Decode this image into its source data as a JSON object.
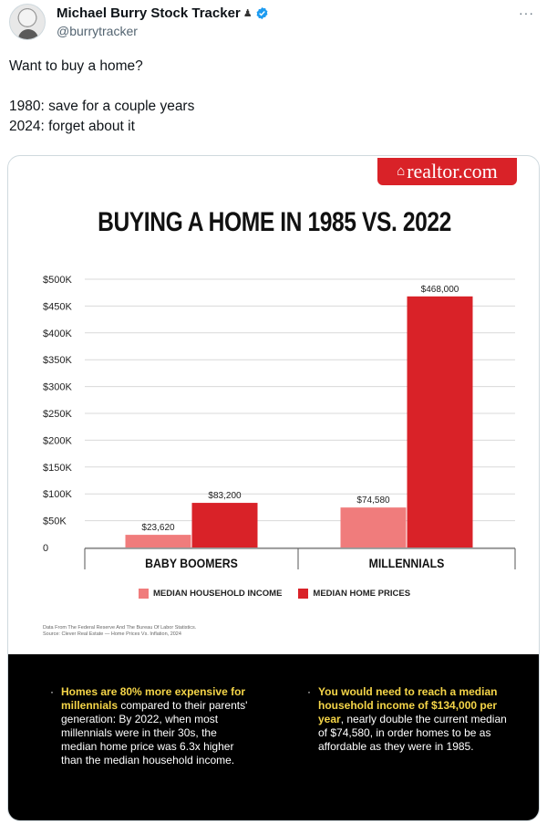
{
  "tweet": {
    "display_name": "Michael Burry Stock Tracker",
    "flag_glyph": "♟",
    "handle": "@burrytracker",
    "more_glyph": "···",
    "text_lines": [
      "Want to buy a home?",
      "",
      "1980: save for a couple years",
      "2024: forget about it"
    ]
  },
  "infographic": {
    "logo_text": "realtor.com",
    "logo_glyph": "⌂",
    "footnote_lines": [
      "Data From The Federal Reserve And The Bureau Of Labor Statistics.",
      "Source: Clever Real Estate — Home Prices Vs. Inflation, 2024"
    ],
    "bullets": [
      {
        "highlight": "Homes are 80% more expensive for millennials",
        "rest": " compared to their parents' generation: By 2022, when most millennials were in their 30s, the median home price was 6.3x higher than the median household income."
      },
      {
        "highlight": "You would need to reach a median household income of $134,000 per year",
        "rest": ", nearly double the current median of $74,580, in order homes to be as affordable as they were in 1985."
      }
    ]
  },
  "colors": {
    "income": "#f07c7c",
    "price": "#d92228",
    "highlight": "#f5d548",
    "logo_bg": "#d92228",
    "verified": "#1d9bf0"
  },
  "chart_data": {
    "type": "bar",
    "title": "BUYING A HOME IN 1985 VS. 2022",
    "categories": [
      "BABY BOOMERS",
      "MILLENNIALS"
    ],
    "series": [
      {
        "name": "MEDIAN HOUSEHOLD INCOME",
        "values": [
          23620,
          74580
        ],
        "labels": [
          "$23,620",
          "$74,580"
        ]
      },
      {
        "name": "MEDIAN HOME PRICES",
        "values": [
          83200,
          468000
        ],
        "labels": [
          "$83,200",
          "$468,000"
        ]
      }
    ],
    "yticks": [
      0,
      50000,
      100000,
      150000,
      200000,
      250000,
      300000,
      350000,
      400000,
      450000,
      500000
    ],
    "ytick_labels": [
      "0",
      "$50K",
      "$100K",
      "$150K",
      "$200K",
      "$250K",
      "$300K",
      "$350K",
      "$400K",
      "$450K",
      "$500K"
    ],
    "ylim": [
      0,
      500000
    ],
    "grid": true,
    "legend_position": "bottom"
  }
}
